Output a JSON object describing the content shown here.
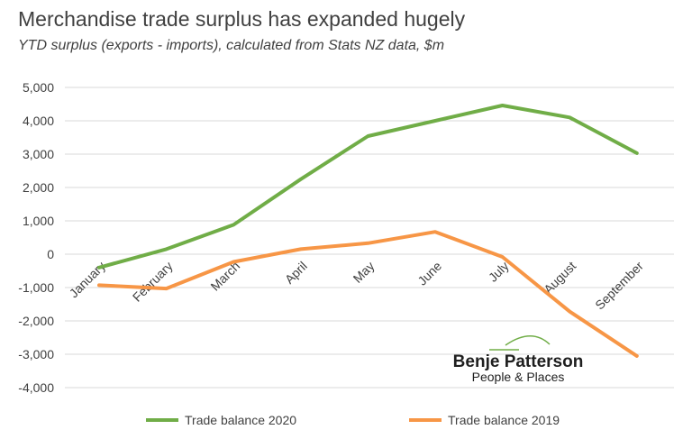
{
  "chart_data": {
    "type": "line",
    "title": "Merchandise trade surplus has expanded hugely",
    "subtitle": "YTD surplus (exports - imports), calculated from Stats NZ data, $m",
    "categories": [
      "January",
      "February",
      "March",
      "April",
      "May",
      "June",
      "July",
      "August",
      "September"
    ],
    "series": [
      {
        "name": "Trade balance 2020",
        "color": "#70ad47",
        "values": [
          -400,
          150,
          880,
          2250,
          3540,
          4000,
          4460,
          4100,
          3030
        ]
      },
      {
        "name": "Trade balance 2019",
        "color": "#f79646",
        "values": [
          -930,
          -1030,
          -230,
          150,
          330,
          670,
          -80,
          -1720,
          -3050
        ]
      }
    ],
    "ylim": [
      -4000,
      5000
    ],
    "yticks": [
      "5,000",
      "4,000",
      "3,000",
      "2,000",
      "1,000",
      "0",
      "-1,000",
      "-2,000",
      "-3,000",
      "-4,000"
    ],
    "ytick_values": [
      5000,
      4000,
      3000,
      2000,
      1000,
      0,
      -1000,
      -2000,
      -3000,
      -4000
    ],
    "grid": true,
    "legend_position": "bottom",
    "xlabel": "",
    "ylabel": ""
  },
  "watermark": {
    "name": "Benje Patterson",
    "tagline": "People & Places",
    "color": "#70ad47"
  }
}
